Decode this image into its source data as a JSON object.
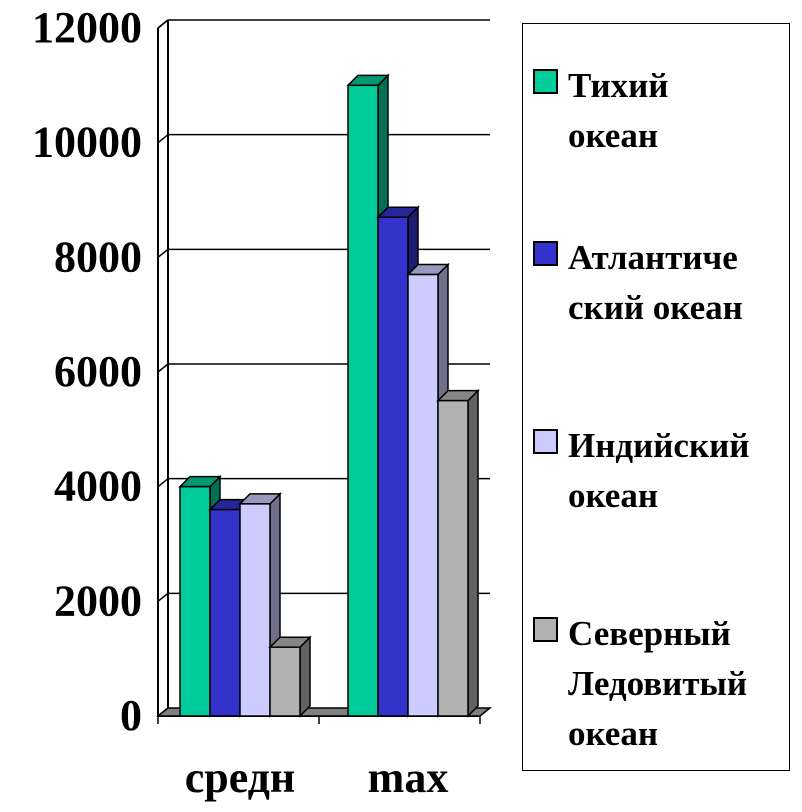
{
  "chart_data": {
    "type": "bar",
    "categories": [
      "средн",
      "max"
    ],
    "series": [
      {
        "name": "Тихий\nокеан",
        "color": "#00CC99",
        "values": [
          4000,
          11000
        ]
      },
      {
        "name": "Атлантиче\nский океан",
        "color": "#3333CC",
        "values": [
          3600,
          8700
        ]
      },
      {
        "name": "Индийский\nокеан",
        "color": "#CCCCFF",
        "values": [
          3700,
          7700
        ]
      },
      {
        "name": "Северный\nЛедовитый\nокеан",
        "color": "#B2B2B2",
        "values": [
          1200,
          5500
        ]
      }
    ],
    "ylim": [
      0,
      12000
    ],
    "yticks": [
      0,
      2000,
      4000,
      6000,
      8000,
      10000,
      12000
    ],
    "title": "",
    "xlabel": "",
    "ylabel": "",
    "grid": true,
    "legend": "right",
    "style": "3d-clustered-column"
  }
}
